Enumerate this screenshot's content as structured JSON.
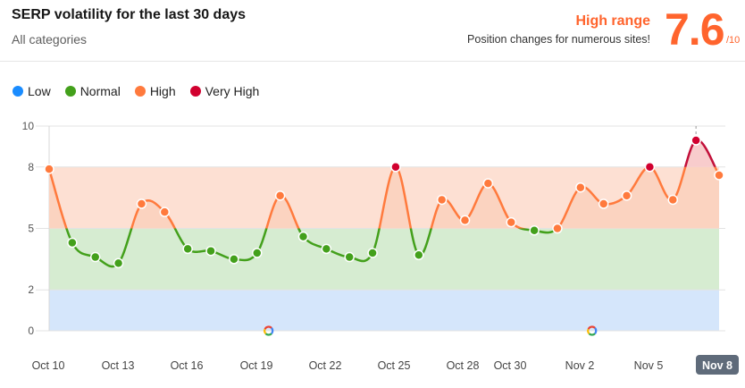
{
  "header": {
    "title": "SERP volatility for the last 30 days",
    "subtitle": "All categories",
    "range_label": "High range",
    "range_description": "Position changes for numerous sites!",
    "score": "7.6",
    "score_max": "/10"
  },
  "legend": [
    {
      "label": "Low",
      "color": "#1a8cff"
    },
    {
      "label": "Normal",
      "color": "#43a01b"
    },
    {
      "label": "High",
      "color": "#ff7a3d"
    },
    {
      "label": "Very High",
      "color": "#d1002f"
    }
  ],
  "chart_data": {
    "type": "area",
    "title": "SERP volatility for the last 30 days",
    "xlabel": "",
    "ylabel": "",
    "ylim": [
      0,
      10
    ],
    "y_ticks": [
      0,
      2,
      5,
      8,
      10
    ],
    "x_ticks": [
      "Oct 10",
      "Oct 13",
      "Oct 16",
      "Oct 19",
      "Oct 22",
      "Oct 25",
      "Oct 28",
      "Oct 30",
      "Nov 2",
      "Nov 5",
      "Nov 8"
    ],
    "active_x_tick": "Nov 8",
    "zones": [
      {
        "label": "Low",
        "from": 0,
        "to": 2,
        "color": "#d5e6fb"
      },
      {
        "label": "Normal",
        "from": 2,
        "to": 5,
        "color": "#d6ecd1"
      },
      {
        "label": "High",
        "from": 5,
        "to": 8,
        "color": "#fde0d3"
      },
      {
        "label": "Very High",
        "from": 8,
        "to": 10,
        "color": "#fbe1e1"
      }
    ],
    "series": [
      {
        "values": [
          7.9,
          4.3,
          3.6,
          3.3,
          6.2,
          5.8,
          4.0,
          3.9,
          3.5,
          3.8,
          6.6,
          4.6,
          4.0,
          3.6,
          3.8,
          8.0,
          3.7,
          6.4,
          5.4,
          7.2,
          5.3,
          4.9,
          5.0,
          7.0,
          6.2,
          6.6,
          8.0,
          6.4,
          9.3,
          7.6
        ]
      }
    ],
    "markers": [
      "google-icon",
      "google-icon"
    ],
    "marker_positions": [
      9.5,
      23.5
    ]
  }
}
